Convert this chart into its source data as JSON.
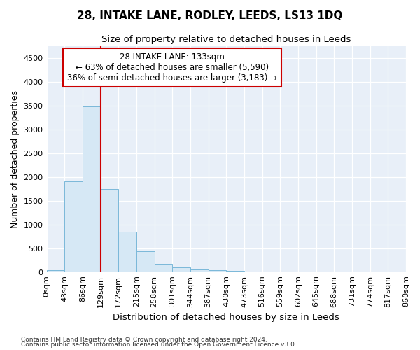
{
  "title": "28, INTAKE LANE, RODLEY, LEEDS, LS13 1DQ",
  "subtitle": "Size of property relative to detached houses in Leeds",
  "xlabel": "Distribution of detached houses by size in Leeds",
  "ylabel": "Number of detached properties",
  "bar_values": [
    35,
    1900,
    3480,
    1750,
    850,
    440,
    175,
    100,
    60,
    35,
    25,
    0,
    0,
    0,
    0,
    0,
    0,
    0,
    0,
    0
  ],
  "bar_labels": [
    "0sqm",
    "43sqm",
    "86sqm",
    "129sqm",
    "172sqm",
    "215sqm",
    "258sqm",
    "301sqm",
    "344sqm",
    "387sqm",
    "430sqm",
    "473sqm",
    "516sqm",
    "559sqm",
    "602sqm",
    "645sqm",
    "688sqm",
    "731sqm",
    "774sqm",
    "817sqm",
    "860sqm"
  ],
  "bar_color": "#d6e8f5",
  "bar_edge_color": "#7ab8d9",
  "property_line_x": 3.0,
  "property_line_color": "#cc0000",
  "annotation_text": "28 INTAKE LANE: 133sqm\n← 63% of detached houses are smaller (5,590)\n36% of semi-detached houses are larger (3,183) →",
  "annotation_box_color": "#ffffff",
  "annotation_box_edge": "#cc0000",
  "ylim": [
    0,
    4750
  ],
  "yticks": [
    0,
    500,
    1000,
    1500,
    2000,
    2500,
    3000,
    3500,
    4000,
    4500
  ],
  "bg_color": "#e8eff8",
  "footer1": "Contains HM Land Registry data © Crown copyright and database right 2024.",
  "footer2": "Contains public sector information licensed under the Open Government Licence v3.0."
}
